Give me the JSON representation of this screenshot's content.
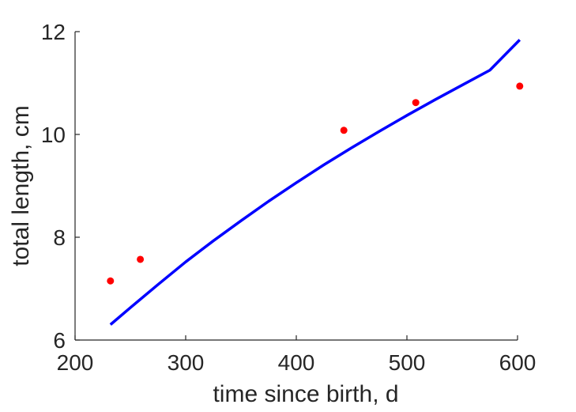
{
  "chart_data": {
    "type": "scatter",
    "title": "",
    "xlabel": "time since birth, d",
    "ylabel": "total length, cm",
    "xlim": [
      200,
      600
    ],
    "ylim": [
      6,
      12
    ],
    "xticks": [
      200,
      300,
      400,
      500,
      600
    ],
    "yticks": [
      6,
      8,
      10,
      12
    ],
    "grid": false,
    "box": false,
    "colors": {
      "axis": "#262626",
      "points": "#ff0000",
      "curve": "#0000ff"
    },
    "series": [
      {
        "kind": "points",
        "x": [
          232,
          259,
          443,
          508,
          602
        ],
        "y": [
          7.15,
          7.57,
          10.08,
          10.62,
          10.94
        ]
      },
      {
        "kind": "line",
        "x": [
          232,
          250,
          275,
          300,
          325,
          350,
          375,
          400,
          425,
          450,
          475,
          500,
          525,
          550,
          575,
          602
        ],
        "y": [
          6.3,
          6.63,
          7.08,
          7.52,
          7.93,
          8.32,
          8.7,
          9.06,
          9.41,
          9.74,
          10.06,
          10.37,
          10.67,
          10.96,
          11.25,
          11.84
        ]
      }
    ]
  }
}
